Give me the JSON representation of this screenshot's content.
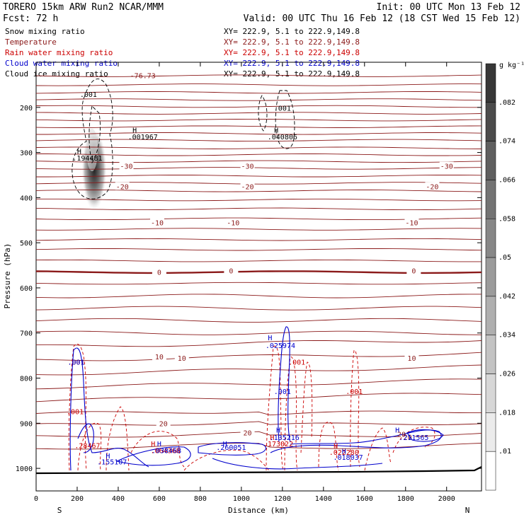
{
  "header": {
    "line1_left": "TORERO   15km ARW    Run2     NCAR/MMM",
    "line1_right": "Init: 00 UTC Mon 13 Feb 12",
    "line2_left": "Fcst:    72 h",
    "line2_right": "Valid: 00 UTC Thu 16 Feb 12 (18 CST Wed 15 Feb 12)"
  },
  "fields": [
    {
      "name": "Snow mixing ratio",
      "xy": "XY= 222.9,   5.1 to 222.9,149.8",
      "color": "#000000"
    },
    {
      "name": "Temperature",
      "xy": "XY= 222.9,   5.1 to 222.9,149.8",
      "color": "#8b1a1a"
    },
    {
      "name": "Rain water mixing ratio",
      "xy": "XY= 222.9,   5.1 to 222.9,149.8",
      "color": "#cc0000"
    },
    {
      "name": "Cloud water mixing ratio",
      "xy": "XY= 222.9,   5.1 to 222.9,149.8",
      "color": "#0000cc"
    },
    {
      "name": "Cloud ice mixing ratio",
      "xy": "XY= 222.9,   5.1 to 222.9,149.8",
      "color": "#000000"
    }
  ],
  "chart_data": {
    "type": "contour cross-section",
    "xlabel": "Distance (km)",
    "ylabel": "Pressure (hPa)",
    "xlim": [
      0,
      2170
    ],
    "ylim": [
      1050,
      100
    ],
    "x_ticks": [
      0,
      200,
      400,
      600,
      800,
      1000,
      1200,
      1400,
      1600,
      1800,
      2000
    ],
    "y_ticks": [
      200,
      300,
      400,
      500,
      600,
      700,
      800,
      900,
      1000
    ],
    "endpoint_labels": {
      "left": "S",
      "right": "N"
    },
    "colorbar": {
      "unit": "g kg⁻¹",
      "tick_labels": [
        ".01",
        ".018",
        ".026",
        ".034",
        ".042",
        ".05",
        ".058",
        ".066",
        ".074",
        ".082"
      ]
    },
    "temperature_contours": [
      {
        "label": "-30",
        "positions_km": [
          440,
          1030,
          2000
        ],
        "pressure": [
          330,
          330,
          330
        ]
      },
      {
        "label": "-20",
        "positions_km": [
          420,
          1030,
          1930
        ],
        "pressure": [
          375,
          375,
          375
        ]
      },
      {
        "label": "-10",
        "positions_km": [
          590,
          960,
          1830
        ],
        "pressure": [
          455,
          455,
          455
        ]
      },
      {
        "label": "0",
        "positions_km": [
          600,
          950,
          1840
        ],
        "pressure": [
          565,
          562,
          562
        ]
      },
      {
        "label": "10",
        "positions_km": [
          600,
          710,
          1830
        ],
        "pressure": [
          752,
          755,
          755
        ]
      },
      {
        "label": "20",
        "positions_km": [
          620,
          1030,
          1810
        ],
        "pressure": [
          900,
          921,
          930
        ]
      }
    ],
    "annotations": [
      {
        "text": "-76.73",
        "x_km": 520,
        "p": 135,
        "color": "#8b1a1a"
      },
      {
        "text": ".001",
        "x_km": 255,
        "p": 177,
        "color": "#000000"
      },
      {
        "text": ".001",
        "x_km": 1200,
        "p": 207,
        "color": "#000000"
      },
      {
        "text": "H",
        "x_km": 480,
        "p": 256,
        "color": "#000000"
      },
      {
        "text": ".001967",
        "x_km": 520,
        "p": 271,
        "color": "#000000"
      },
      {
        "text": "H",
        "x_km": 1170,
        "p": 256,
        "color": "#000000"
      },
      {
        "text": ".040806",
        "x_km": 1200,
        "p": 271,
        "color": "#000000"
      },
      {
        "text": "H",
        "x_km": 210,
        "p": 303,
        "color": "#000000"
      },
      {
        "text": ".194481",
        "x_km": 250,
        "p": 318,
        "color": "#000000"
      },
      {
        "text": "H",
        "x_km": 1140,
        "p": 716,
        "color": "#0000cc"
      },
      {
        "text": ".025974",
        "x_km": 1190,
        "p": 733,
        "color": "#0000cc"
      },
      {
        "text": ".001",
        "x_km": 195,
        "p": 770,
        "color": "#cc0000"
      },
      {
        "text": ".001",
        "x_km": 195,
        "p": 770,
        "color": "#0000cc"
      },
      {
        "text": ".001",
        "x_km": 1270,
        "p": 770,
        "color": "#cc0000"
      },
      {
        "text": ".001",
        "x_km": 1200,
        "p": 835,
        "color": "#0000cc"
      },
      {
        "text": ".001",
        "x_km": 1550,
        "p": 835,
        "color": "#cc0000"
      },
      {
        "text": ".001",
        "x_km": 190,
        "p": 880,
        "color": "#cc0000"
      },
      {
        "text": "H",
        "x_km": 1180,
        "p": 921,
        "color": "#0000cc"
      },
      {
        "text": ".135216",
        "x_km": 1210,
        "p": 937,
        "color": "#0000cc"
      },
      {
        "text": "H",
        "x_km": 1150,
        "p": 937,
        "color": "#cc0000"
      },
      {
        "text": ".173022",
        "x_km": 1180,
        "p": 951,
        "color": "#cc0000"
      },
      {
        "text": "H",
        "x_km": 920,
        "p": 951,
        "color": "#0000cc"
      },
      {
        "text": ".260051",
        "x_km": 950,
        "p": 959,
        "color": "#0000cc"
      },
      {
        "text": "H",
        "x_km": 570,
        "p": 951,
        "color": "#cc0000"
      },
      {
        "text": "H",
        "x_km": 600,
        "p": 951,
        "color": "#0000cc"
      },
      {
        "text": ".064368",
        "x_km": 630,
        "p": 966,
        "color": "#cc0000"
      },
      {
        "text": ".038468",
        "x_km": 635,
        "p": 966,
        "color": "#0000cc"
      },
      {
        "text": ".28467",
        "x_km": 250,
        "p": 955,
        "color": "#cc0000"
      },
      {
        "text": "H",
        "x_km": 350,
        "p": 978,
        "color": "#0000cc"
      },
      {
        "text": ".155107",
        "x_km": 370,
        "p": 991,
        "color": "#0000cc"
      },
      {
        "text": "H",
        "x_km": 1460,
        "p": 955,
        "color": "#cc0000"
      },
      {
        "text": ".022280",
        "x_km": 1500,
        "p": 970,
        "color": "#cc0000"
      },
      {
        "text": "H",
        "x_km": 1500,
        "p": 968,
        "color": "#0000cc"
      },
      {
        "text": ".018037",
        "x_km": 1520,
        "p": 981,
        "color": "#0000cc"
      },
      {
        "text": "H",
        "x_km": 1760,
        "p": 921,
        "color": "#0000cc"
      },
      {
        "text": ".211565",
        "x_km": 1840,
        "p": 937,
        "color": "#0000cc"
      },
      {
        "text": "20",
        "x_km": 1780,
        "p": 930,
        "color": "#8b1a1a"
      }
    ]
  }
}
